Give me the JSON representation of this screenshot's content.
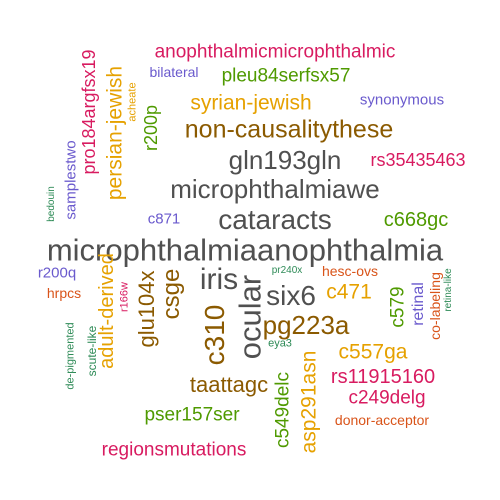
{
  "words": [
    {
      "text": "microphthalmiaanophthalmia",
      "color": "#505050"
    },
    {
      "text": "cataracts",
      "color": "#505050"
    },
    {
      "text": "microphthalmiawe",
      "color": "#505050"
    },
    {
      "text": "gln193gln",
      "color": "#505050"
    },
    {
      "text": "iris",
      "color": "#505050"
    },
    {
      "text": "six6",
      "color": "#505050"
    },
    {
      "text": "ocular",
      "color": "#505050"
    },
    {
      "text": "c310",
      "color": "#8b5a00"
    },
    {
      "text": "pg223a",
      "color": "#8b5a00"
    },
    {
      "text": "csge",
      "color": "#8b5a00"
    },
    {
      "text": "non-causalitythese",
      "color": "#8b5a00"
    },
    {
      "text": "glu104x",
      "color": "#8b5a00"
    },
    {
      "text": "taattagc",
      "color": "#8b5a00"
    },
    {
      "text": "anophthalmicmicrophthalmic",
      "color": "#d81b60"
    },
    {
      "text": "pleu84serfsx57",
      "color": "#4f9a00"
    },
    {
      "text": "syrian-jewish",
      "color": "#e6a100"
    },
    {
      "text": "persian-jewish",
      "color": "#e6a100"
    },
    {
      "text": "pro184argfsx19",
      "color": "#d81b60"
    },
    {
      "text": "r200p",
      "color": "#4f9a00"
    },
    {
      "text": "rs35435463",
      "color": "#d81b60"
    },
    {
      "text": "c668gc",
      "color": "#4f9a00"
    },
    {
      "text": "c471",
      "color": "#e6a100"
    },
    {
      "text": "c557ga",
      "color": "#e6a100"
    },
    {
      "text": "rs11915160",
      "color": "#d81b60"
    },
    {
      "text": "c249delg",
      "color": "#d81b60"
    },
    {
      "text": "asp291asn",
      "color": "#e6a100"
    },
    {
      "text": "c549delc",
      "color": "#4f9a00"
    },
    {
      "text": "adult-derived",
      "color": "#e6a100"
    },
    {
      "text": "pser157ser",
      "color": "#4f9a00"
    },
    {
      "text": "regionsmutations",
      "color": "#d81b60"
    },
    {
      "text": "samplestwo",
      "color": "#6a5acd"
    },
    {
      "text": "synonymous",
      "color": "#6a5acd"
    },
    {
      "text": "bilateral",
      "color": "#6a5acd"
    },
    {
      "text": "acheate",
      "color": "#e6a100"
    },
    {
      "text": "c871",
      "color": "#6a5acd"
    },
    {
      "text": "bedouin",
      "color": "#2e8b57"
    },
    {
      "text": "r200q",
      "color": "#6a5acd"
    },
    {
      "text": "hrpcs",
      "color": "#d9541a"
    },
    {
      "text": "r166w",
      "color": "#d81b60"
    },
    {
      "text": "pr240x",
      "color": "#2e8b57"
    },
    {
      "text": "hesc-ovs",
      "color": "#d9541a"
    },
    {
      "text": "c579",
      "color": "#4f9a00"
    },
    {
      "text": "retinal",
      "color": "#6a5acd"
    },
    {
      "text": "co-labeling",
      "color": "#d9541a"
    },
    {
      "text": "retina-like",
      "color": "#2e8b57"
    },
    {
      "text": "eya3",
      "color": "#2e8b57"
    },
    {
      "text": "scute-like",
      "color": "#2e8b57"
    },
    {
      "text": "de-pigmented",
      "color": "#2e8b57"
    },
    {
      "text": "donor-acceptor",
      "color": "#d9541a"
    }
  ]
}
